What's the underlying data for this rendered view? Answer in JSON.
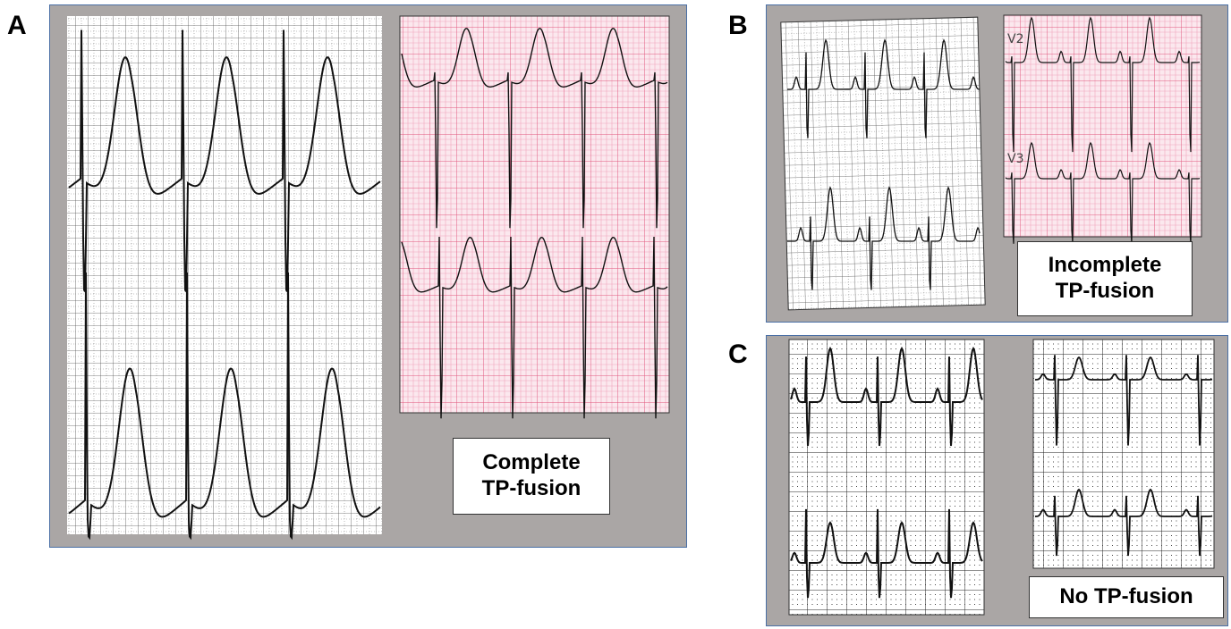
{
  "panels": [
    {
      "label": "A",
      "caption": [
        "Complete",
        "TP-fusion"
      ]
    },
    {
      "label": "B",
      "caption": [
        "Incomplete",
        "TP-fusion"
      ],
      "leads": [
        "V2",
        "V3"
      ]
    },
    {
      "label": "C",
      "caption": [
        "No TP-fusion"
      ]
    }
  ]
}
